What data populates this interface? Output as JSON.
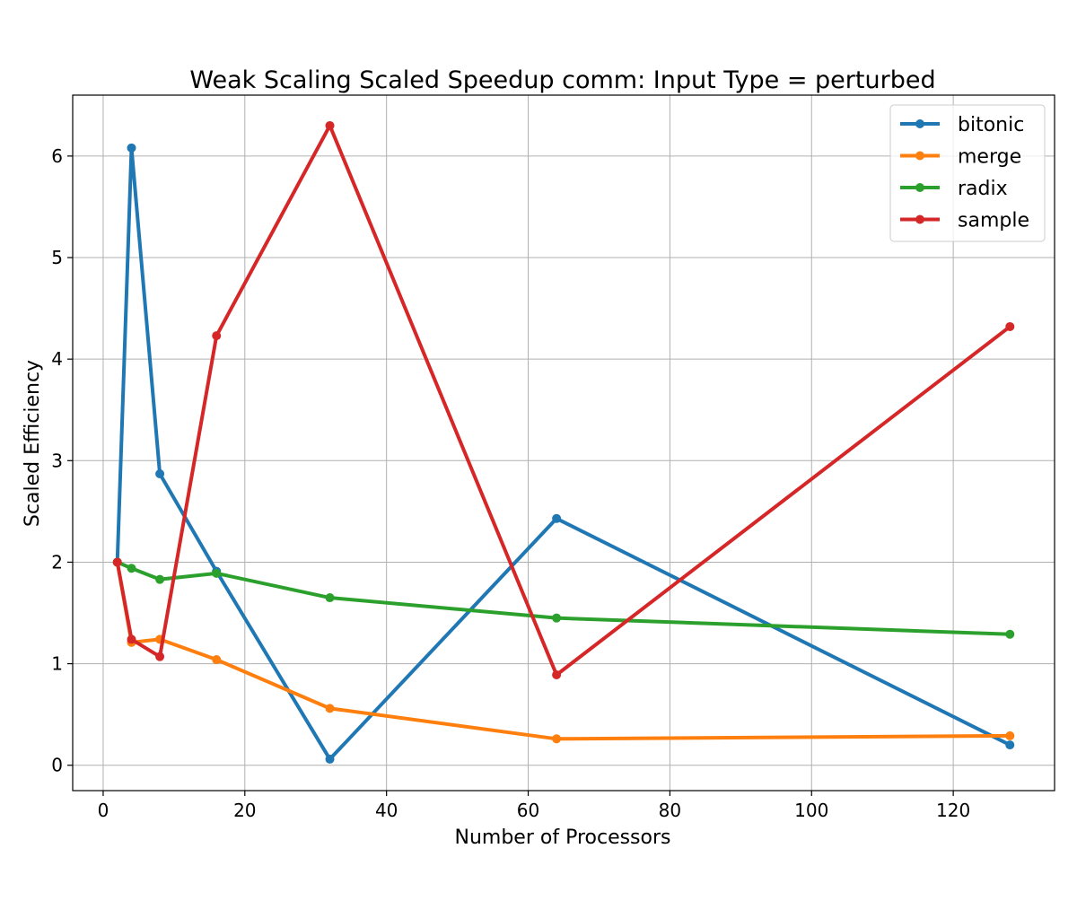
{
  "chart_data": {
    "type": "line",
    "title": "Weak Scaling Scaled Speedup comm: Input Type = perturbed",
    "xlabel": "Number of Processors",
    "ylabel": "Scaled Efficiency",
    "xlim": [
      -4.3,
      134.3
    ],
    "ylim": [
      -0.25,
      6.6
    ],
    "xticks": [
      0,
      20,
      40,
      60,
      80,
      100,
      120
    ],
    "yticks": [
      0,
      1,
      2,
      3,
      4,
      5,
      6
    ],
    "grid": true,
    "legend_position": "top-right",
    "series": [
      {
        "name": "bitonic",
        "color": "#1f77b4",
        "x": [
          2,
          4,
          8,
          16,
          32,
          64,
          128
        ],
        "y": [
          2.0,
          6.08,
          2.87,
          1.91,
          0.06,
          2.43,
          0.2
        ]
      },
      {
        "name": "merge",
        "color": "#ff7f0e",
        "x": [
          2,
          4,
          8,
          16,
          32,
          64,
          128
        ],
        "y": [
          2.0,
          1.21,
          1.24,
          1.04,
          0.56,
          0.26,
          0.29
        ]
      },
      {
        "name": "radix",
        "color": "#2ca02c",
        "x": [
          2,
          4,
          8,
          16,
          32,
          64,
          128
        ],
        "y": [
          2.0,
          1.94,
          1.83,
          1.89,
          1.65,
          1.45,
          1.29
        ]
      },
      {
        "name": "sample",
        "color": "#d62728",
        "x": [
          2,
          4,
          8,
          16,
          32,
          64,
          128
        ],
        "y": [
          2.0,
          1.24,
          1.07,
          4.23,
          6.3,
          0.89,
          4.32
        ]
      }
    ]
  }
}
